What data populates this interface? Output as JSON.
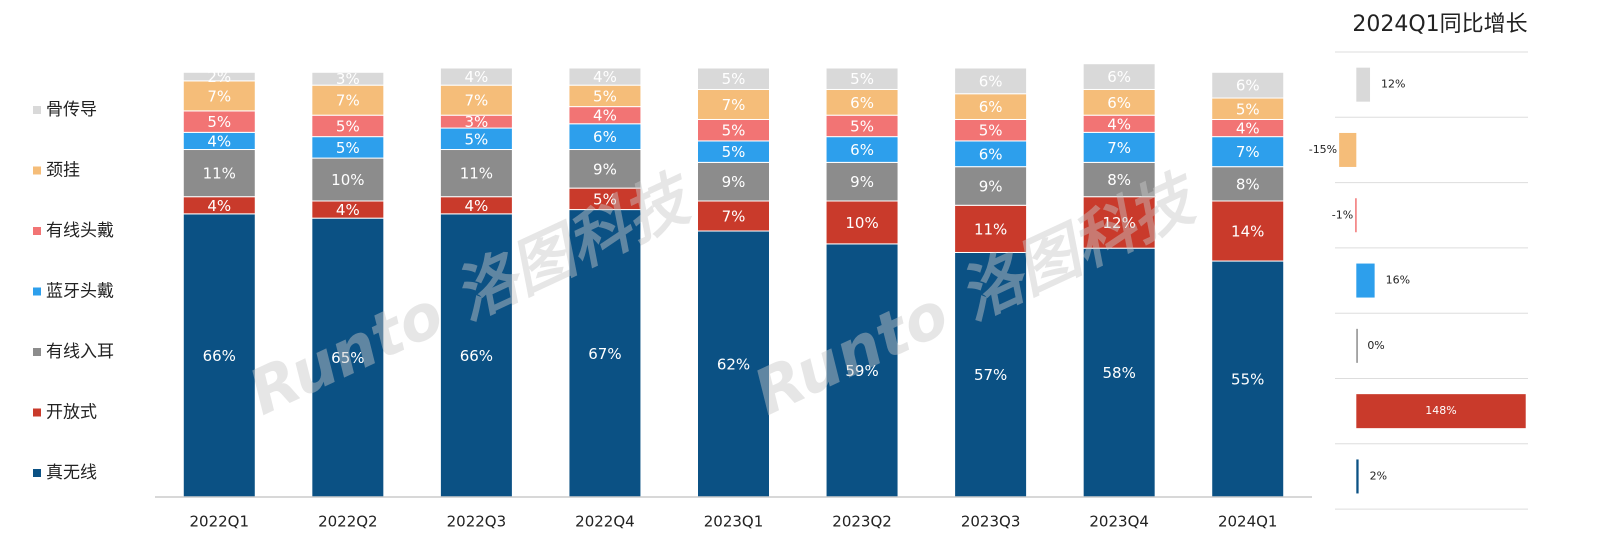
{
  "watermark": "Runto 洛图科技",
  "chart_data": [
    {
      "type": "stacked_bar",
      "categories": [
        "2022Q1",
        "2022Q2",
        "2022Q3",
        "2022Q4",
        "2023Q1",
        "2023Q2",
        "2023Q3",
        "2023Q4",
        "2024Q1"
      ],
      "ylim": [
        0,
        100
      ],
      "legend": "left",
      "series": [
        {
          "name": "真无线",
          "color": "#0b5184",
          "values": [
            66,
            65,
            66,
            67,
            62,
            59,
            57,
            58,
            55
          ],
          "value_labels": [
            "66%",
            "65%",
            "66%",
            "67%",
            "62%",
            "59%",
            "57%",
            "58%",
            "55%"
          ]
        },
        {
          "name": "开放式",
          "color": "#c93a2b",
          "values": [
            4,
            4,
            4,
            5,
            7,
            10,
            11,
            12,
            14
          ],
          "value_labels": [
            "4%",
            "4%",
            "4%",
            "5%",
            "7%",
            "10%",
            "11%",
            "12%",
            "14%"
          ]
        },
        {
          "name": "有线入耳",
          "color": "#8c8c8c",
          "values": [
            11,
            10,
            11,
            9,
            9,
            9,
            9,
            8,
            8
          ],
          "value_labels": [
            "11%",
            "10%",
            "11%",
            "9%",
            "9%",
            "9%",
            "9%",
            "8%",
            "8%"
          ]
        },
        {
          "name": "蓝牙头戴",
          "color": "#2d9fec",
          "values": [
            4,
            5,
            5,
            6,
            5,
            6,
            6,
            7,
            7
          ],
          "value_labels": [
            "4%",
            "5%",
            "5%",
            "6%",
            "5%",
            "6%",
            "6%",
            "7%",
            "7%"
          ]
        },
        {
          "name": "有线头戴",
          "color": "#f27474",
          "values": [
            5,
            5,
            3,
            4,
            5,
            5,
            5,
            4,
            4
          ],
          "value_labels": [
            "5%",
            "5%",
            "3%",
            "4%",
            "5%",
            "5%",
            "5%",
            "4%",
            "4%"
          ]
        },
        {
          "name": "颈挂",
          "color": "#f5bd79",
          "values": [
            7,
            7,
            7,
            5,
            7,
            6,
            6,
            6,
            5
          ],
          "value_labels": [
            "7%",
            "7%",
            "7%",
            "5%",
            "7%",
            "6%",
            "6%",
            "6%",
            "5%"
          ]
        },
        {
          "name": "骨传导",
          "color": "#d9d9d9",
          "values": [
            2,
            3,
            4,
            4,
            5,
            5,
            6,
            6,
            6
          ],
          "value_labels": [
            "2%",
            "3%",
            "4%",
            "4%",
            "5%",
            "5%",
            "6%",
            "6%",
            "6%"
          ]
        }
      ]
    },
    {
      "type": "hbar",
      "title": "2024Q1同比增长",
      "xlim": [
        -16,
        150
      ],
      "values": [
        12,
        -15,
        -1,
        16,
        0,
        148,
        2
      ],
      "value_labels": [
        "12%",
        "-15%",
        "-1%",
        "16%",
        "0%",
        "148%",
        "2%"
      ],
      "colors": [
        "#d9d9d9",
        "#f5bd79",
        "#f27474",
        "#2d9fec",
        "#8c8c8c",
        "#c93a2b",
        "#0b5184"
      ]
    }
  ]
}
